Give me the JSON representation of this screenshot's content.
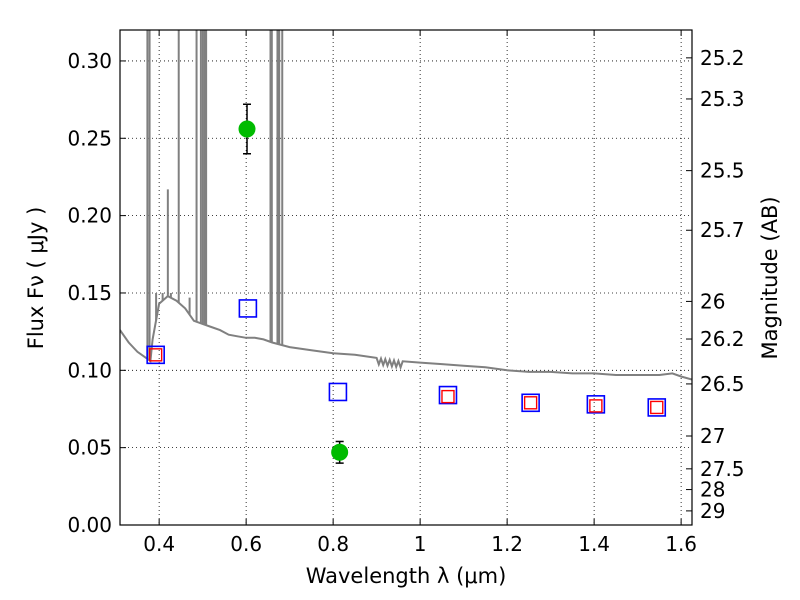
{
  "chart_data": {
    "type": "scatter",
    "xlabel": "Wavelength  λ (μm)",
    "ylabel": "Flux  Fν  ( μJy )",
    "y2label": "Magnitude (AB)",
    "xlim": [
      0.31,
      1.625
    ],
    "ylim": [
      0.0,
      0.32
    ],
    "x_ticks": [
      0.4,
      0.6,
      0.8,
      1.0,
      1.2,
      1.4,
      1.6
    ],
    "x_tick_labels": [
      "0.4",
      "0.6",
      "0.8",
      "1",
      "1.2",
      "1.4",
      "1.6"
    ],
    "y_ticks": [
      0.0,
      0.05,
      0.1,
      0.15,
      0.2,
      0.25,
      0.3
    ],
    "y_tick_labels": [
      "0.00",
      "0.05",
      "0.10",
      "0.15",
      "0.20",
      "0.25",
      "0.30"
    ],
    "mag_ticks": [
      "25.2",
      "25.3",
      "25.5",
      "25.7",
      "26",
      "26.2",
      "26.5",
      "27",
      "27.5",
      "28",
      "29"
    ],
    "grid": true,
    "series": [
      {
        "name": "model spectrum",
        "kind": "line",
        "color": "#808080",
        "continuum": [
          [
            0.31,
            0.126
          ],
          [
            0.33,
            0.118
          ],
          [
            0.35,
            0.112
          ],
          [
            0.37,
            0.108
          ],
          [
            0.38,
            0.106
          ],
          [
            0.385,
            0.12
          ],
          [
            0.4,
            0.143
          ],
          [
            0.42,
            0.148
          ],
          [
            0.44,
            0.145
          ],
          [
            0.46,
            0.14
          ],
          [
            0.48,
            0.132
          ],
          [
            0.5,
            0.13
          ],
          [
            0.52,
            0.128
          ],
          [
            0.54,
            0.126
          ],
          [
            0.56,
            0.123
          ],
          [
            0.58,
            0.122
          ],
          [
            0.6,
            0.121
          ],
          [
            0.62,
            0.121
          ],
          [
            0.64,
            0.12
          ],
          [
            0.66,
            0.118
          ],
          [
            0.7,
            0.115
          ],
          [
            0.75,
            0.113
          ],
          [
            0.8,
            0.111
          ],
          [
            0.85,
            0.11
          ],
          [
            0.9,
            0.108
          ],
          [
            0.95,
            0.106
          ],
          [
            1.0,
            0.105
          ],
          [
            1.05,
            0.104
          ],
          [
            1.1,
            0.103
          ],
          [
            1.15,
            0.102
          ],
          [
            1.2,
            0.1
          ],
          [
            1.25,
            0.099
          ],
          [
            1.3,
            0.099
          ],
          [
            1.35,
            0.098
          ],
          [
            1.4,
            0.098
          ],
          [
            1.45,
            0.097
          ],
          [
            1.5,
            0.097
          ],
          [
            1.55,
            0.097
          ],
          [
            1.58,
            0.098
          ],
          [
            1.6,
            0.096
          ],
          [
            1.625,
            0.094
          ]
        ],
        "lines": [
          [
            0.373,
            0.32
          ],
          [
            0.378,
            0.32
          ],
          [
            0.393,
            0.15
          ],
          [
            0.408,
            0.15
          ],
          [
            0.42,
            0.217
          ],
          [
            0.427,
            0.15
          ],
          [
            0.445,
            0.32
          ],
          [
            0.47,
            0.147
          ],
          [
            0.486,
            0.32
          ],
          [
            0.496,
            0.32
          ],
          [
            0.5007,
            0.32
          ],
          [
            0.505,
            0.32
          ],
          [
            0.508,
            0.32
          ],
          [
            0.656,
            0.32
          ],
          [
            0.659,
            0.32
          ],
          [
            0.672,
            0.32
          ],
          [
            0.673,
            0.32
          ],
          [
            0.676,
            0.32
          ],
          [
            0.683,
            0.32
          ]
        ],
        "absorption_band": [
          0.87,
          0.96
        ]
      },
      {
        "name": "observed photometry",
        "kind": "points-with-errors",
        "marker": "circle",
        "color": "#00bb00",
        "points": [
          {
            "x": 0.602,
            "y": 0.256,
            "err": 0.016
          },
          {
            "x": 0.815,
            "y": 0.047,
            "err": 0.007
          }
        ]
      },
      {
        "name": "model photometry (blue)",
        "kind": "points",
        "marker": "square",
        "color": "#0000ff",
        "points": [
          {
            "x": 0.392,
            "y": 0.11
          },
          {
            "x": 0.604,
            "y": 0.14
          },
          {
            "x": 0.811,
            "y": 0.086
          },
          {
            "x": 1.064,
            "y": 0.084
          },
          {
            "x": 1.254,
            "y": 0.079
          },
          {
            "x": 1.404,
            "y": 0.078
          },
          {
            "x": 1.544,
            "y": 0.076
          }
        ]
      },
      {
        "name": "model photometry (red)",
        "kind": "points",
        "marker": "square",
        "color": "#ff0000",
        "points": [
          {
            "x": 0.392,
            "y": 0.11
          },
          {
            "x": 1.064,
            "y": 0.083
          },
          {
            "x": 1.254,
            "y": 0.079
          },
          {
            "x": 1.404,
            "y": 0.077
          },
          {
            "x": 1.544,
            "y": 0.076
          }
        ]
      }
    ]
  }
}
